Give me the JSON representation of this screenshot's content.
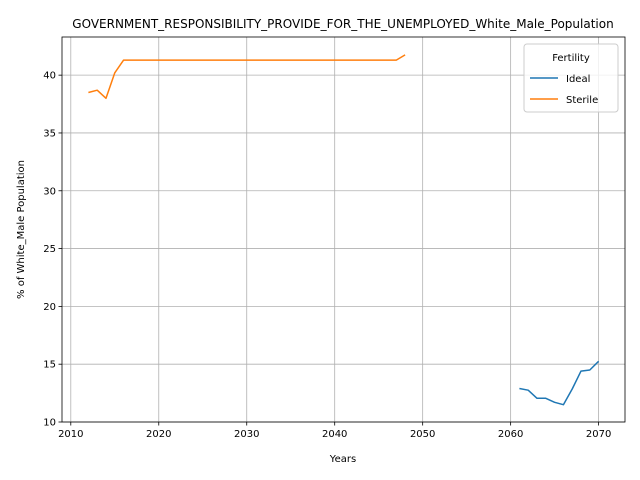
{
  "chart_data": {
    "type": "line",
    "title": "GOVERNMENT_RESPONSIBILITY_PROVIDE_FOR_THE_UNEMPLOYED_White_Male_Population",
    "xlabel": "Years",
    "ylabel": "% of White_Male Population",
    "xlim": [
      2009,
      2073
    ],
    "ylim": [
      10,
      43.3
    ],
    "xticks": [
      2010,
      2020,
      2030,
      2040,
      2050,
      2060,
      2070
    ],
    "yticks": [
      10,
      15,
      20,
      25,
      30,
      35,
      40
    ],
    "grid": true,
    "legend": {
      "title": "Fertility",
      "placement": "top-right"
    },
    "series": [
      {
        "name": "Ideal",
        "color": "#1f77b4",
        "x": [
          2061,
          2062,
          2063,
          2064,
          2065,
          2066,
          2067,
          2068,
          2069,
          2070
        ],
        "y": [
          12.9,
          12.75,
          12.05,
          12.05,
          11.7,
          11.5,
          12.85,
          14.4,
          14.5,
          15.25
        ]
      },
      {
        "name": "Sterile",
        "color": "#ff7f0e",
        "x": [
          2012,
          2013,
          2014,
          2015,
          2016,
          2017,
          2018,
          2019,
          2020,
          2021,
          2022,
          2023,
          2024,
          2025,
          2026,
          2027,
          2028,
          2029,
          2030,
          2031,
          2032,
          2033,
          2034,
          2035,
          2036,
          2037,
          2038,
          2039,
          2040,
          2041,
          2042,
          2043,
          2044,
          2045,
          2046,
          2047,
          2048
        ],
        "y": [
          38.5,
          38.7,
          38.0,
          40.2,
          41.3,
          41.3,
          41.3,
          41.3,
          41.3,
          41.3,
          41.3,
          41.3,
          41.3,
          41.3,
          41.3,
          41.3,
          41.3,
          41.3,
          41.3,
          41.3,
          41.3,
          41.3,
          41.3,
          41.3,
          41.3,
          41.3,
          41.3,
          41.3,
          41.3,
          41.3,
          41.3,
          41.3,
          41.3,
          41.3,
          41.3,
          41.3,
          41.75
        ]
      }
    ]
  }
}
